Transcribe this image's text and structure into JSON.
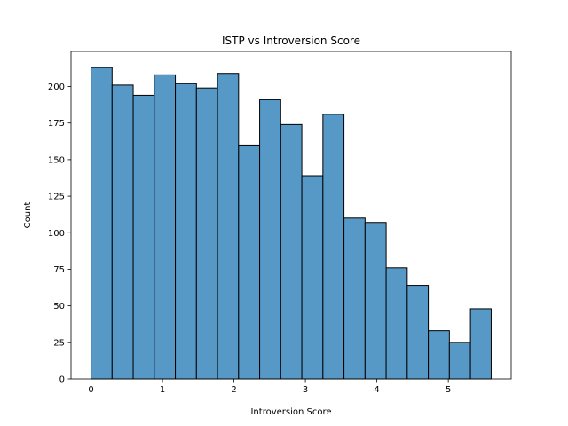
{
  "chart_data": {
    "type": "bar",
    "title": "ISTP vs Introversion Score",
    "xlabel": "Introversion Score",
    "ylabel": "Count",
    "bin_edges": [
      0,
      0.295,
      0.59,
      0.885,
      1.18,
      1.475,
      1.77,
      2.065,
      2.36,
      2.655,
      2.95,
      3.245,
      3.54,
      3.835,
      4.13,
      4.425,
      4.72,
      5.015,
      5.31,
      5.6
    ],
    "values": [
      213,
      201,
      194,
      208,
      202,
      199,
      209,
      160,
      191,
      174,
      139,
      181,
      110,
      107,
      76,
      64,
      33,
      25,
      48
    ],
    "xlim": [
      -0.28,
      5.88
    ],
    "ylim": [
      0,
      224
    ],
    "xticks": [
      0,
      1,
      2,
      3,
      4,
      5
    ],
    "yticks": [
      0,
      25,
      50,
      75,
      100,
      125,
      150,
      175,
      200
    ],
    "bar_color": "#5698c6",
    "edge_color": "#000000",
    "grid": false,
    "legend": "none"
  }
}
